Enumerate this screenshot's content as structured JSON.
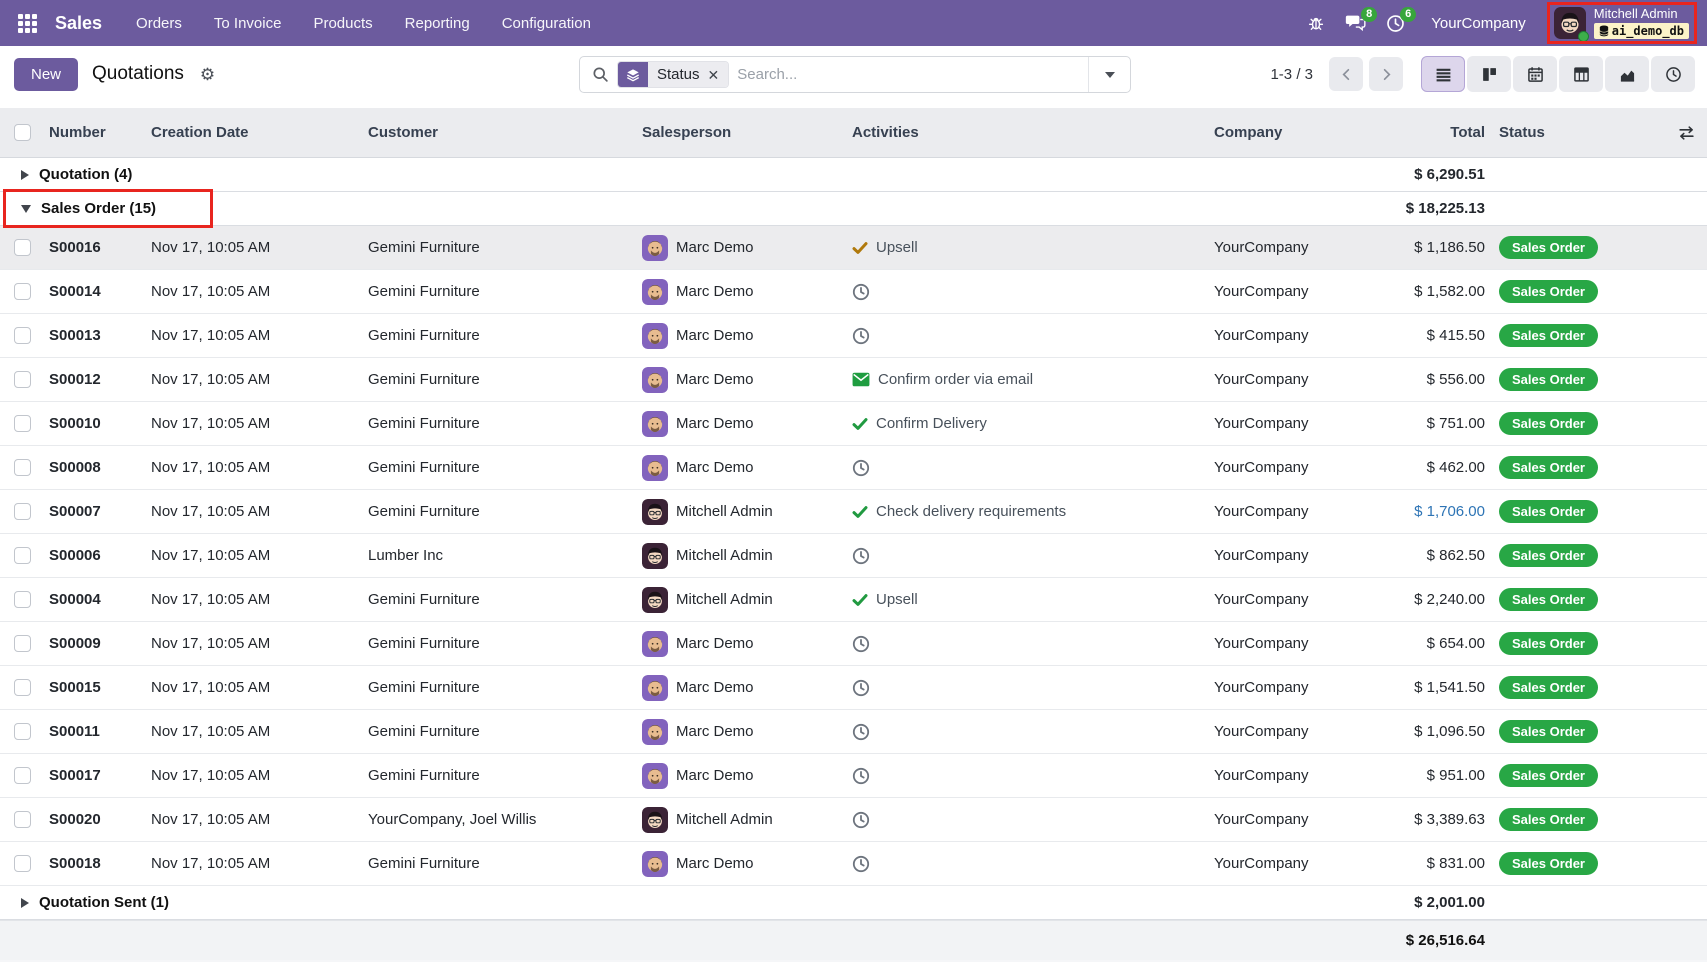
{
  "colors": {
    "primary_purple": "#6c5b9e",
    "status_badge_green": "#28a745",
    "info_total_blue": "#2d74b5",
    "annotation_red": "#e8251f",
    "activity_done_orange": "#b0790c",
    "activity_green": "#219a41"
  },
  "nav": {
    "app_name": "Sales",
    "items": [
      "Orders",
      "To Invoice",
      "Products",
      "Reporting",
      "Configuration"
    ],
    "icons": [
      "apps-grid-icon",
      "bug-icon",
      "messages-icon",
      "activity-clock-icon"
    ],
    "message_count": "8",
    "activity_count": "6",
    "company": "YourCompany",
    "user_name": "Mitchell Admin",
    "database": "ai_demo_db"
  },
  "control_panel": {
    "new_button": "New",
    "title": "Quotations",
    "search_facet": "Status",
    "search_placeholder": "Search...",
    "search_value": "",
    "pager": "1-3 / 3",
    "view_switcher": [
      "list",
      "kanban",
      "calendar",
      "pivot",
      "graph",
      "activity"
    ],
    "active_view": "list"
  },
  "table": {
    "columns": [
      "Number",
      "Creation Date",
      "Customer",
      "Salesperson",
      "Activities",
      "Company",
      "Total",
      "Status"
    ],
    "groups": [
      {
        "label": "Quotation (4)",
        "expanded": false,
        "annotated": false,
        "total": "$ 6,290.51",
        "rows": []
      },
      {
        "label": "Sales Order (15)",
        "expanded": true,
        "annotated": true,
        "total": "$ 18,225.13",
        "rows": [
          {
            "number": "S00016",
            "date": "Nov 17, 10:05 AM",
            "customer": "Gemini Furniture",
            "salesperson": "Marc Demo",
            "avatar": "marc",
            "activity": {
              "type": "check-orange",
              "label": "Upsell"
            },
            "company": "YourCompany",
            "total": "$ 1,186.50",
            "total_info": false,
            "status": "Sales Order",
            "highlighted": true
          },
          {
            "number": "S00014",
            "date": "Nov 17, 10:05 AM",
            "customer": "Gemini Furniture",
            "salesperson": "Marc Demo",
            "avatar": "marc",
            "activity": {
              "type": "clock",
              "label": ""
            },
            "company": "YourCompany",
            "total": "$ 1,582.00",
            "total_info": false,
            "status": "Sales Order",
            "highlighted": false
          },
          {
            "number": "S00013",
            "date": "Nov 17, 10:05 AM",
            "customer": "Gemini Furniture",
            "salesperson": "Marc Demo",
            "avatar": "marc",
            "activity": {
              "type": "clock",
              "label": ""
            },
            "company": "YourCompany",
            "total": "$ 415.50",
            "total_info": false,
            "status": "Sales Order",
            "highlighted": false
          },
          {
            "number": "S00012",
            "date": "Nov 17, 10:05 AM",
            "customer": "Gemini Furniture",
            "salesperson": "Marc Demo",
            "avatar": "marc",
            "activity": {
              "type": "envelope",
              "label": "Confirm order via email"
            },
            "company": "YourCompany",
            "total": "$ 556.00",
            "total_info": false,
            "status": "Sales Order",
            "highlighted": false
          },
          {
            "number": "S00010",
            "date": "Nov 17, 10:05 AM",
            "customer": "Gemini Furniture",
            "salesperson": "Marc Demo",
            "avatar": "marc",
            "activity": {
              "type": "check-green",
              "label": "Confirm Delivery"
            },
            "company": "YourCompany",
            "total": "$ 751.00",
            "total_info": false,
            "status": "Sales Order",
            "highlighted": false
          },
          {
            "number": "S00008",
            "date": "Nov 17, 10:05 AM",
            "customer": "Gemini Furniture",
            "salesperson": "Marc Demo",
            "avatar": "marc",
            "activity": {
              "type": "clock",
              "label": ""
            },
            "company": "YourCompany",
            "total": "$ 462.00",
            "total_info": false,
            "status": "Sales Order",
            "highlighted": false
          },
          {
            "number": "S00007",
            "date": "Nov 17, 10:05 AM",
            "customer": "Gemini Furniture",
            "salesperson": "Mitchell Admin",
            "avatar": "mitchell",
            "activity": {
              "type": "check-green",
              "label": "Check delivery requirements"
            },
            "company": "YourCompany",
            "total": "$ 1,706.00",
            "total_info": true,
            "status": "Sales Order",
            "highlighted": false
          },
          {
            "number": "S00006",
            "date": "Nov 17, 10:05 AM",
            "customer": "Lumber Inc",
            "salesperson": "Mitchell Admin",
            "avatar": "mitchell",
            "activity": {
              "type": "clock",
              "label": ""
            },
            "company": "YourCompany",
            "total": "$ 862.50",
            "total_info": false,
            "status": "Sales Order",
            "highlighted": false
          },
          {
            "number": "S00004",
            "date": "Nov 17, 10:05 AM",
            "customer": "Gemini Furniture",
            "salesperson": "Mitchell Admin",
            "avatar": "mitchell",
            "activity": {
              "type": "check-green",
              "label": "Upsell"
            },
            "company": "YourCompany",
            "total": "$ 2,240.00",
            "total_info": false,
            "status": "Sales Order",
            "highlighted": false
          },
          {
            "number": "S00009",
            "date": "Nov 17, 10:05 AM",
            "customer": "Gemini Furniture",
            "salesperson": "Marc Demo",
            "avatar": "marc",
            "activity": {
              "type": "clock",
              "label": ""
            },
            "company": "YourCompany",
            "total": "$ 654.00",
            "total_info": false,
            "status": "Sales Order",
            "highlighted": false
          },
          {
            "number": "S00015",
            "date": "Nov 17, 10:05 AM",
            "customer": "Gemini Furniture",
            "salesperson": "Marc Demo",
            "avatar": "marc",
            "activity": {
              "type": "clock",
              "label": ""
            },
            "company": "YourCompany",
            "total": "$ 1,541.50",
            "total_info": false,
            "status": "Sales Order",
            "highlighted": false
          },
          {
            "number": "S00011",
            "date": "Nov 17, 10:05 AM",
            "customer": "Gemini Furniture",
            "salesperson": "Marc Demo",
            "avatar": "marc",
            "activity": {
              "type": "clock",
              "label": ""
            },
            "company": "YourCompany",
            "total": "$ 1,096.50",
            "total_info": false,
            "status": "Sales Order",
            "highlighted": false
          },
          {
            "number": "S00017",
            "date": "Nov 17, 10:05 AM",
            "customer": "Gemini Furniture",
            "salesperson": "Marc Demo",
            "avatar": "marc",
            "activity": {
              "type": "clock",
              "label": ""
            },
            "company": "YourCompany",
            "total": "$ 951.00",
            "total_info": false,
            "status": "Sales Order",
            "highlighted": false
          },
          {
            "number": "S00020",
            "date": "Nov 17, 10:05 AM",
            "customer": "YourCompany, Joel Willis",
            "salesperson": "Mitchell Admin",
            "avatar": "mitchell",
            "activity": {
              "type": "clock",
              "label": ""
            },
            "company": "YourCompany",
            "total": "$ 3,389.63",
            "total_info": false,
            "status": "Sales Order",
            "highlighted": false
          },
          {
            "number": "S00018",
            "date": "Nov 17, 10:05 AM",
            "customer": "Gemini Furniture",
            "salesperson": "Marc Demo",
            "avatar": "marc",
            "activity": {
              "type": "clock",
              "label": ""
            },
            "company": "YourCompany",
            "total": "$ 831.00",
            "total_info": false,
            "status": "Sales Order",
            "highlighted": false
          }
        ]
      },
      {
        "label": "Quotation Sent (1)",
        "expanded": false,
        "annotated": false,
        "total": "$ 2,001.00",
        "rows": []
      }
    ],
    "grand_total": "$ 26,516.64"
  }
}
